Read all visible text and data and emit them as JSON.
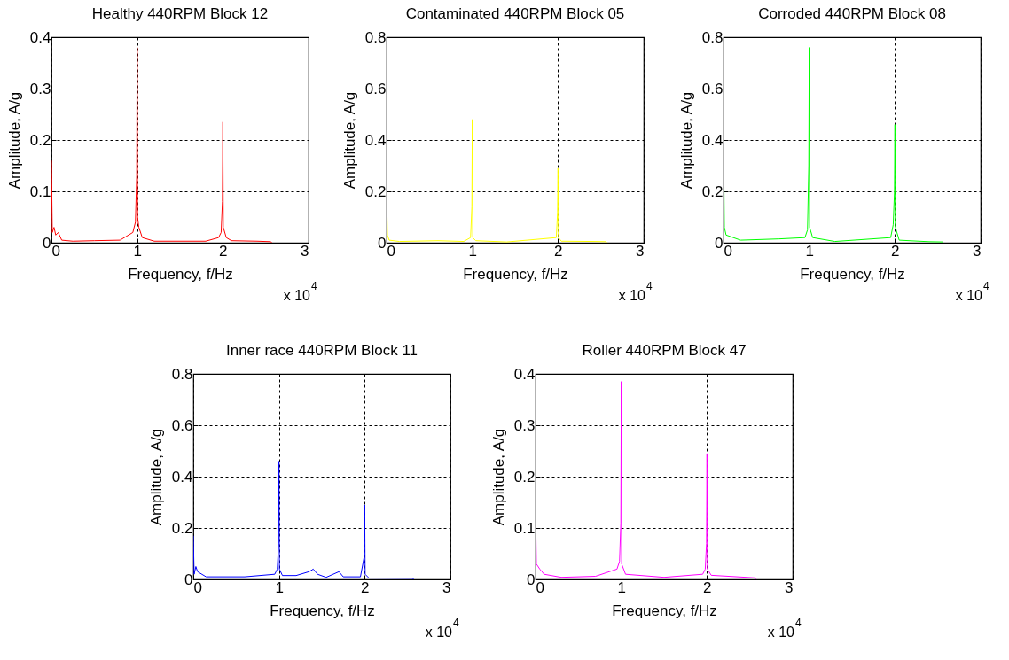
{
  "chart_data": [
    {
      "type": "line",
      "title": "Healthy 440RPM Block 12",
      "xlabel": "Frequency, f/Hz",
      "ylabel": "Amplitude, A/g",
      "annotations": [
        "x 10$^{4}$"
      ],
      "x": [
        0,
        0.01,
        0.03,
        0.05,
        0.08,
        0.12,
        0.25,
        0.5,
        0.8,
        0.95,
        0.98,
        0.995,
        1,
        1.005,
        1.02,
        1.06,
        1.2,
        1.5,
        1.8,
        1.95,
        1.98,
        1.995,
        2,
        2.005,
        2.04,
        2.1,
        2.4,
        2.56,
        2.57
      ],
      "series": [
        {
          "color": "#ff0000",
          "values": [
            0.16,
            0.02,
            0.03,
            0.015,
            0.02,
            0.005,
            0.003,
            0.004,
            0.005,
            0.02,
            0.04,
            0.13,
            0.38,
            0.05,
            0.03,
            0.01,
            0.003,
            0.003,
            0.003,
            0.01,
            0.02,
            0.08,
            0.235,
            0.03,
            0.01,
            0.004,
            0.003,
            0.002,
            0
          ]
        }
      ],
      "xlim": [
        0,
        3
      ],
      "xticks": [
        0,
        1,
        2,
        3
      ],
      "ylim": [
        0,
        0.4
      ],
      "yticks": [
        0,
        0.1,
        0.2,
        0.3,
        0.4
      ],
      "grid": true
    },
    {
      "type": "line",
      "title": "Contaminated 440RPM Block 05",
      "xlabel": "Frequency, f/Hz",
      "ylabel": "Amplitude, A/g",
      "annotations": [
        "x 10$^{4}$"
      ],
      "x": [
        0,
        0.01,
        0.03,
        0.15,
        0.6,
        0.9,
        0.98,
        0.995,
        1,
        1.005,
        1.04,
        1.4,
        1.98,
        1.995,
        2,
        2.005,
        2.04,
        2.4,
        2.56,
        2.57
      ],
      "series": [
        {
          "color": "#ffff00",
          "values": [
            0.18,
            0.03,
            0.01,
            0.005,
            0.008,
            0.005,
            0.02,
            0.14,
            0.48,
            0.02,
            0.008,
            0.003,
            0.02,
            0.12,
            0.29,
            0.02,
            0.006,
            0.005,
            0.004,
            0
          ]
        }
      ],
      "xlim": [
        0,
        3
      ],
      "xticks": [
        0,
        1,
        2,
        3
      ],
      "ylim": [
        0,
        0.8
      ],
      "yticks": [
        0,
        0.2,
        0.4,
        0.6,
        0.8
      ],
      "grid": true
    },
    {
      "type": "line",
      "title": "Corroded 440RPM Block 08",
      "xlabel": "Frequency, f/Hz",
      "ylabel": "Amplitude, A/g",
      "annotations": [
        "x 10$^{4}$"
      ],
      "x": [
        0,
        0.01,
        0.03,
        0.2,
        0.65,
        0.95,
        0.98,
        0.995,
        1,
        1.005,
        1.04,
        1.3,
        1.95,
        1.98,
        1.995,
        2,
        2.005,
        2.05,
        2.4,
        2.56
      ],
      "series": [
        {
          "color": "#00ff00",
          "values": [
            0.4,
            0.06,
            0.03,
            0.01,
            0.015,
            0.02,
            0.05,
            0.3,
            0.76,
            0.06,
            0.02,
            0.005,
            0.02,
            0.07,
            0.2,
            0.46,
            0.06,
            0.01,
            0.004,
            0.003
          ]
        }
      ],
      "xlim": [
        0,
        3
      ],
      "xticks": [
        0,
        1,
        2,
        3
      ],
      "ylim": [
        0,
        0.8
      ],
      "yticks": [
        0,
        0.2,
        0.4,
        0.6,
        0.8
      ],
      "grid": true
    },
    {
      "type": "line",
      "title": "Inner race 440RPM Block 11",
      "xlabel": "Frequency, f/Hz",
      "ylabel": "Amplitude, A/g",
      "annotations": [
        "x 10$^{4}$"
      ],
      "x": [
        0,
        0.01,
        0.03,
        0.05,
        0.15,
        0.6,
        0.95,
        0.98,
        0.995,
        1,
        1.005,
        1.04,
        1.2,
        1.35,
        1.4,
        1.45,
        1.55,
        1.7,
        1.75,
        1.95,
        1.995,
        2,
        2.005,
        2.05,
        2.56,
        2.57
      ],
      "series": [
        {
          "color": "#0000ff",
          "values": [
            0.17,
            0.02,
            0.05,
            0.03,
            0.01,
            0.01,
            0.02,
            0.04,
            0.14,
            0.46,
            0.04,
            0.015,
            0.015,
            0.03,
            0.04,
            0.02,
            0.008,
            0.03,
            0.01,
            0.01,
            0.09,
            0.29,
            0.02,
            0.005,
            0.004,
            0
          ]
        }
      ],
      "xlim": [
        0,
        3
      ],
      "xticks": [
        0,
        1,
        2,
        3
      ],
      "ylim": [
        0,
        0.8
      ],
      "yticks": [
        0,
        0.2,
        0.4,
        0.6,
        0.8
      ],
      "grid": true
    },
    {
      "type": "line",
      "title": "Roller 440RPM Block 47",
      "xlabel": "Frequency, f/Hz",
      "ylabel": "Amplitude, A/g",
      "annotations": [
        "x 10$^{4}$"
      ],
      "x": [
        0,
        0.01,
        0.05,
        0.1,
        0.3,
        0.7,
        0.95,
        0.98,
        0.995,
        1,
        1.005,
        1.05,
        1.5,
        1.95,
        1.98,
        1.995,
        2,
        2.005,
        2.05,
        2.56,
        2.57
      ],
      "series": [
        {
          "color": "#ff00ff",
          "values": [
            0.14,
            0.03,
            0.02,
            0.01,
            0.004,
            0.006,
            0.02,
            0.035,
            0.11,
            0.385,
            0.03,
            0.01,
            0.004,
            0.01,
            0.02,
            0.07,
            0.245,
            0.02,
            0.008,
            0.003,
            0
          ]
        }
      ],
      "xlim": [
        0,
        3
      ],
      "xticks": [
        0,
        1,
        2,
        3
      ],
      "ylim": [
        0,
        0.4
      ],
      "yticks": [
        0,
        0.1,
        0.2,
        0.3,
        0.4
      ],
      "grid": true
    }
  ]
}
